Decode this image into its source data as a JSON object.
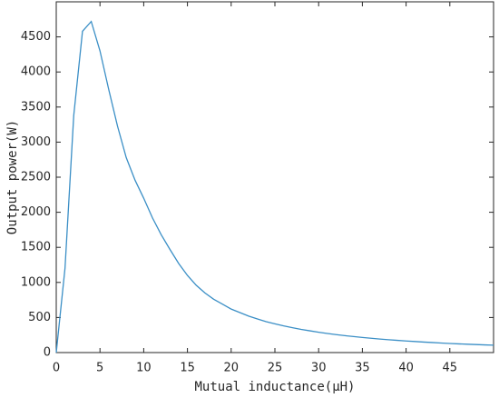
{
  "chart_data": {
    "type": "line",
    "xlabel": "Mutual inductance(μH)",
    "ylabel": "Output power(W)",
    "x": [
      0,
      1,
      2,
      3,
      4,
      5,
      6,
      7,
      8,
      9,
      10,
      11,
      12,
      13,
      14,
      15,
      16,
      17,
      18,
      19,
      20,
      21,
      22,
      23,
      24,
      25,
      26,
      27,
      28,
      29,
      30,
      31,
      32,
      33,
      34,
      35,
      36,
      37,
      38,
      39,
      40,
      41,
      42,
      43,
      44,
      45,
      46,
      47,
      48,
      49,
      50
    ],
    "series": [
      {
        "name": "Output power",
        "color": "#3b8fc6",
        "values": [
          0,
          1200,
          3380,
          4580,
          4720,
          4300,
          3750,
          3230,
          2780,
          2460,
          2200,
          1920,
          1680,
          1470,
          1270,
          1100,
          960,
          850,
          760,
          690,
          620,
          570,
          520,
          480,
          440,
          410,
          380,
          355,
          330,
          310,
          290,
          272,
          256,
          241,
          228,
          215,
          204,
          193,
          183,
          174,
          165,
          158,
          150,
          143,
          136,
          130,
          124,
          119,
          114,
          109,
          105
        ]
      }
    ],
    "xlim": [
      0,
      50
    ],
    "xticks": [
      0,
      5,
      10,
      15,
      20,
      25,
      30,
      35,
      40,
      45
    ],
    "ylim": [
      0,
      5000
    ],
    "yticks": [
      0,
      500,
      1000,
      1500,
      2000,
      2500,
      3000,
      3500,
      4000,
      4500
    ],
    "grid": false
  }
}
